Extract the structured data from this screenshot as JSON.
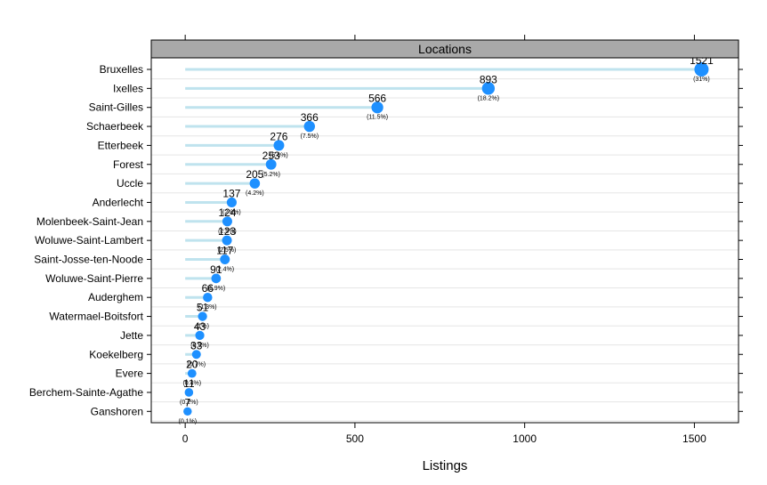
{
  "colors": {
    "point": "#1E90FF",
    "stem": "#BFE3EE",
    "strip": "#A9A9A9",
    "grid": "#E5E5E5",
    "frame": "#000000"
  },
  "chart_data": {
    "type": "dot",
    "panel_title": "Locations",
    "xlabel": "Listings",
    "ylabel": "",
    "xlim": [
      -100,
      1630
    ],
    "xticks": [
      0,
      500,
      1000,
      1500
    ],
    "categories": [
      "Bruxelles",
      "Ixelles",
      "Saint-Gilles",
      "Schaerbeek",
      "Etterbeek",
      "Forest",
      "Uccle",
      "Anderlecht",
      "Molenbeek-Saint-Jean",
      "Woluwe-Saint-Lambert",
      "Saint-Josse-ten-Noode",
      "Woluwe-Saint-Pierre",
      "Auderghem",
      "Watermael-Boitsfort",
      "Jette",
      "Koekelberg",
      "Evere",
      "Berchem-Sainte-Agathe",
      "Ganshoren"
    ],
    "values": [
      1521,
      893,
      566,
      366,
      276,
      253,
      205,
      137,
      124,
      123,
      117,
      91,
      66,
      51,
      43,
      33,
      20,
      11,
      7
    ],
    "value_labels": [
      "1521",
      "893",
      "566",
      "366",
      "276",
      "253",
      "205",
      "137",
      "124",
      "123",
      "117",
      "91",
      "66",
      "51",
      "43",
      "33",
      "20",
      "11",
      "7"
    ],
    "percent_labels": [
      "(31%)",
      "(18.2%)",
      "(11.5%)",
      "(7.5%)",
      "(5.6%)",
      "(5.2%)",
      "(4.2%)",
      "(2.8%)",
      "(2.5%)",
      "(2.5%)",
      "(2.4%)",
      "(1.9%)",
      "(1.3%)",
      "(1%)",
      "(0.9%)",
      "(0.7%)",
      "(0.4%)",
      "(0.2%)",
      "(0.1%)"
    ]
  }
}
